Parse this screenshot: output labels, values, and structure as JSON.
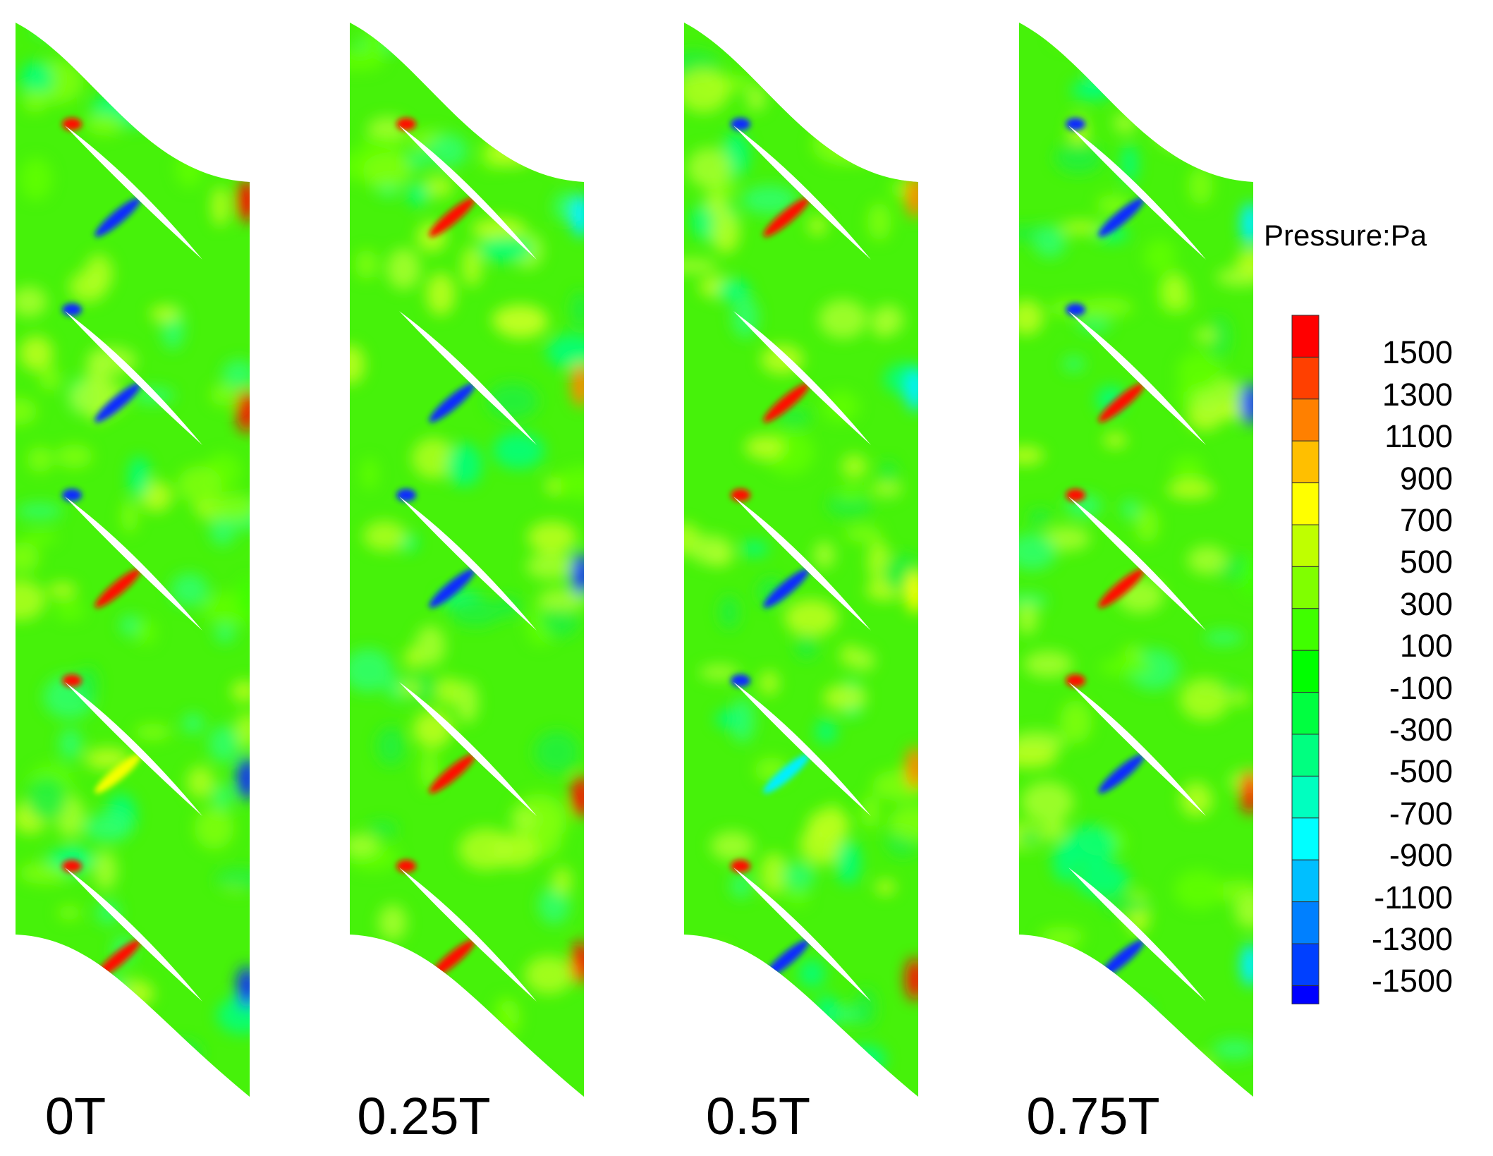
{
  "legend": {
    "title": "Pressure:Pa",
    "levels": [
      {
        "label": "1500",
        "color": "#ff0000"
      },
      {
        "label": "1300",
        "color": "#ff4000"
      },
      {
        "label": "1100",
        "color": "#ff8000"
      },
      {
        "label": "900",
        "color": "#ffbf00"
      },
      {
        "label": "700",
        "color": "#ffff00"
      },
      {
        "label": "500",
        "color": "#bfff00"
      },
      {
        "label": "300",
        "color": "#80ff00"
      },
      {
        "label": "100",
        "color": "#40ff00"
      },
      {
        "label": "-100",
        "color": "#00ff00"
      },
      {
        "label": "-300",
        "color": "#00ff40"
      },
      {
        "label": "-500",
        "color": "#00ff80"
      },
      {
        "label": "-700",
        "color": "#00ffbf"
      },
      {
        "label": "-900",
        "color": "#00ffff"
      },
      {
        "label": "-1100",
        "color": "#00bfff"
      },
      {
        "label": "-1300",
        "color": "#0080ff"
      },
      {
        "label": "-1500",
        "color": "#0040ff"
      }
    ],
    "bottom_color": "#0000ff"
  },
  "panels": [
    {
      "label": "0T",
      "edge_spots": [
        "red",
        "red",
        "green",
        "blue",
        "blue"
      ]
    },
    {
      "label": "0.25T",
      "edge_spots": [
        "cyan",
        "orange",
        "blue",
        "red",
        "red"
      ]
    },
    {
      "label": "0.5T",
      "edge_spots": [
        "orange",
        "cyan",
        "yellow",
        "orange",
        "red"
      ]
    },
    {
      "label": "0.75T",
      "edge_spots": [
        "cyan",
        "blue",
        "green",
        "red",
        "cyan"
      ]
    }
  ],
  "blade_features": [
    [
      {
        "le": "red",
        "ss": "blue"
      },
      {
        "le": "blue",
        "ss": "blue"
      },
      {
        "le": "blue",
        "ss": "red"
      },
      {
        "le": "red",
        "ss": "yellow"
      },
      {
        "le": "red",
        "ss": "red"
      }
    ],
    [
      {
        "le": "red",
        "ss": "red"
      },
      {
        "le": "none",
        "ss": "blue"
      },
      {
        "le": "blue",
        "ss": "blue"
      },
      {
        "le": "none",
        "ss": "red"
      },
      {
        "le": "red",
        "ss": "red"
      }
    ],
    [
      {
        "le": "blue",
        "ss": "red"
      },
      {
        "le": "none",
        "ss": "red"
      },
      {
        "le": "red",
        "ss": "blue"
      },
      {
        "le": "blue",
        "ss": "cyan"
      },
      {
        "le": "red",
        "ss": "blue"
      }
    ],
    [
      {
        "le": "blue",
        "ss": "blue"
      },
      {
        "le": "blue",
        "ss": "red"
      },
      {
        "le": "red",
        "ss": "red"
      },
      {
        "le": "red",
        "ss": "blue"
      },
      {
        "le": "none",
        "ss": "blue"
      }
    ]
  ]
}
